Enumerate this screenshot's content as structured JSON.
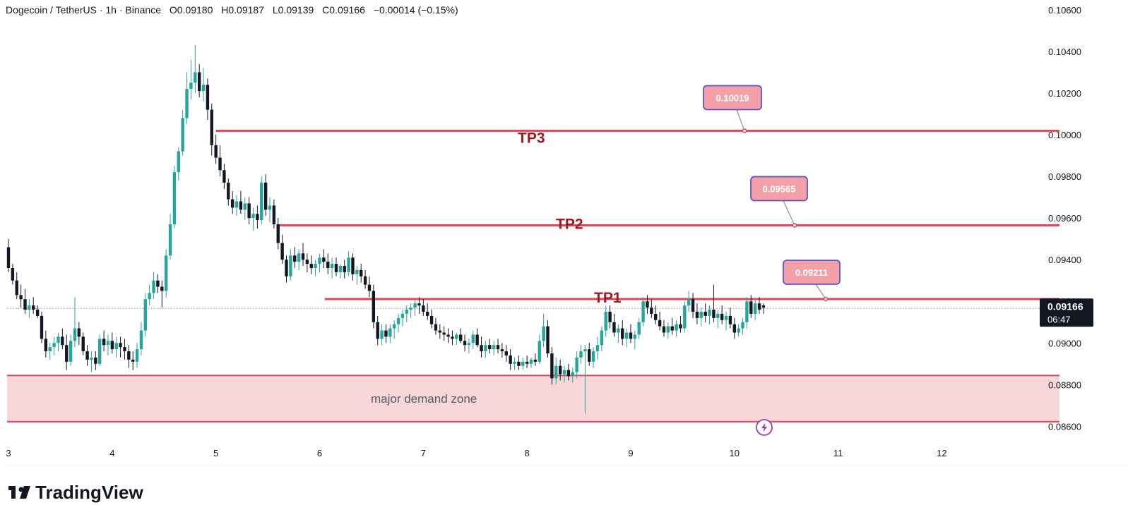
{
  "header": {
    "title": "Dogecoin / TetherUS · 1h · Binance",
    "open": "O0.09180",
    "high": "H0.09187",
    "low": "L0.09139",
    "close": "C0.09166",
    "change": "−0.00014 (−0.15%)"
  },
  "brand": {
    "name": "TradingView",
    "icon": "tradingview-logo-icon"
  },
  "colors": {
    "up": "#26a69a",
    "down": "#131722",
    "level": "#e0465a",
    "zone_fill": "#f7d7da",
    "callout_fill": "#f4a0a8",
    "callout_border": "#5b55c7",
    "badge": "#131722"
  },
  "current": {
    "price": "0.09166",
    "countdown": "06:47"
  },
  "lightning_icon": "lightning-icon",
  "chart_data": {
    "type": "candlestick",
    "title": "",
    "xlabel": "",
    "ylabel": "",
    "xlim": [
      3.0,
      12.93
    ],
    "ylim": [
      0.08547,
      0.1062
    ],
    "x_ticks": [
      "3",
      "4",
      "5",
      "6",
      "7",
      "8",
      "9",
      "10",
      "11",
      "12"
    ],
    "y_ticks": [
      "0.10600",
      "0.10400",
      "0.10200",
      "0.10000",
      "0.09800",
      "0.09600",
      "0.09400",
      "0.09200",
      "0.09000",
      "0.08800",
      "0.08600"
    ],
    "grid": false,
    "levels": [
      {
        "label": "TP3",
        "price": 0.10019,
        "callout": "0.10019",
        "x_start": 5.0
      },
      {
        "label": "TP2",
        "price": 0.09565,
        "callout": "0.09565",
        "x_start": 5.6
      },
      {
        "label": "TP1",
        "price": 0.09211,
        "callout": "0.09211",
        "x_start": 6.05
      }
    ],
    "demand_zone": {
      "label": "major demand zone",
      "high": 0.08844,
      "low": 0.08622
    },
    "last_price": 0.09166,
    "candles": [
      [
        3.0,
        0.0946,
        0.095,
        0.0934,
        0.0936
      ],
      [
        3.04,
        0.0936,
        0.0938,
        0.0928,
        0.093
      ],
      [
        3.08,
        0.093,
        0.0934,
        0.0921,
        0.0923
      ],
      [
        3.12,
        0.0923,
        0.0928,
        0.0917,
        0.0921
      ],
      [
        3.16,
        0.0921,
        0.0926,
        0.0914,
        0.0916
      ],
      [
        3.2,
        0.0916,
        0.0921,
        0.0912,
        0.0918
      ],
      [
        3.24,
        0.0918,
        0.0922,
        0.0914,
        0.0916
      ],
      [
        3.28,
        0.0916,
        0.0918,
        0.0912,
        0.0913
      ],
      [
        3.32,
        0.0913,
        0.0915,
        0.09,
        0.0902
      ],
      [
        3.36,
        0.0902,
        0.0906,
        0.0893,
        0.0896
      ],
      [
        3.4,
        0.0896,
        0.09,
        0.0892,
        0.0898
      ],
      [
        3.44,
        0.0898,
        0.0903,
        0.0894,
        0.09
      ],
      [
        3.48,
        0.09,
        0.0905,
        0.0896,
        0.0903
      ],
      [
        3.52,
        0.0903,
        0.0907,
        0.0897,
        0.0899
      ],
      [
        3.56,
        0.0899,
        0.0904,
        0.0887,
        0.0891
      ],
      [
        3.6,
        0.0891,
        0.0904,
        0.0889,
        0.0901
      ],
      [
        3.64,
        0.0901,
        0.0922,
        0.0898,
        0.0907
      ],
      [
        3.68,
        0.0907,
        0.091,
        0.0899,
        0.0903
      ],
      [
        3.72,
        0.0903,
        0.0905,
        0.0894,
        0.0896
      ],
      [
        3.76,
        0.0896,
        0.0899,
        0.0889,
        0.0892
      ],
      [
        3.8,
        0.0892,
        0.0896,
        0.0886,
        0.0893
      ],
      [
        3.84,
        0.0893,
        0.0896,
        0.0887,
        0.089
      ],
      [
        3.88,
        0.089,
        0.0904,
        0.0889,
        0.0902
      ],
      [
        3.92,
        0.0902,
        0.0906,
        0.0896,
        0.0899
      ],
      [
        3.96,
        0.0899,
        0.0904,
        0.0894,
        0.0901
      ],
      [
        4.0,
        0.0901,
        0.0905,
        0.0895,
        0.0897
      ],
      [
        4.04,
        0.0897,
        0.0903,
        0.0893,
        0.09
      ],
      [
        4.08,
        0.09,
        0.0903,
        0.0893,
        0.0898
      ],
      [
        4.12,
        0.0898,
        0.0902,
        0.0892,
        0.0896
      ],
      [
        4.16,
        0.0896,
        0.0899,
        0.0888,
        0.0892
      ],
      [
        4.2,
        0.0892,
        0.0896,
        0.0887,
        0.0891
      ],
      [
        4.24,
        0.0891,
        0.09,
        0.0888,
        0.0897
      ],
      [
        4.28,
        0.0897,
        0.091,
        0.0894,
        0.0906
      ],
      [
        4.32,
        0.0906,
        0.0924,
        0.0903,
        0.0921
      ],
      [
        4.36,
        0.0921,
        0.0928,
        0.0918,
        0.0924
      ],
      [
        4.4,
        0.0924,
        0.0934,
        0.0921,
        0.093
      ],
      [
        4.44,
        0.093,
        0.0933,
        0.0924,
        0.0927
      ],
      [
        4.48,
        0.0927,
        0.093,
        0.0917,
        0.0925
      ],
      [
        4.52,
        0.0925,
        0.0945,
        0.0922,
        0.0942
      ],
      [
        4.56,
        0.0942,
        0.0962,
        0.094,
        0.0957
      ],
      [
        4.6,
        0.0957,
        0.0985,
        0.0955,
        0.0982
      ],
      [
        4.64,
        0.0982,
        0.0994,
        0.0978,
        0.0992
      ],
      [
        4.68,
        0.0992,
        0.1012,
        0.099,
        0.1008
      ],
      [
        4.72,
        0.1008,
        0.103,
        0.1005,
        0.1022
      ],
      [
        4.76,
        0.1022,
        0.1036,
        0.1017,
        0.1025
      ],
      [
        4.8,
        0.1025,
        0.1043,
        0.102,
        0.103
      ],
      [
        4.84,
        0.103,
        0.1034,
        0.1018,
        0.1021
      ],
      [
        4.88,
        0.1021,
        0.1032,
        0.1016,
        0.1024
      ],
      [
        4.92,
        0.1024,
        0.1027,
        0.1007,
        0.1012
      ],
      [
        4.96,
        0.1012,
        0.1015,
        0.099,
        0.0995
      ],
      [
        5.0,
        0.0995,
        0.1,
        0.0986,
        0.0989
      ],
      [
        5.04,
        0.0989,
        0.0995,
        0.098,
        0.0983
      ],
      [
        5.08,
        0.0983,
        0.0986,
        0.0974,
        0.0977
      ],
      [
        5.12,
        0.0977,
        0.0979,
        0.0966,
        0.0969
      ],
      [
        5.16,
        0.0969,
        0.0973,
        0.0962,
        0.0965
      ],
      [
        5.2,
        0.0965,
        0.0971,
        0.0961,
        0.0968
      ],
      [
        5.24,
        0.0968,
        0.0973,
        0.0962,
        0.0964
      ],
      [
        5.28,
        0.0964,
        0.097,
        0.0959,
        0.0967
      ],
      [
        5.32,
        0.0967,
        0.097,
        0.0957,
        0.096
      ],
      [
        5.36,
        0.096,
        0.0965,
        0.0954,
        0.0962
      ],
      [
        5.4,
        0.0962,
        0.0966,
        0.0955,
        0.0959
      ],
      [
        5.44,
        0.0959,
        0.098,
        0.0957,
        0.0977
      ],
      [
        5.48,
        0.0977,
        0.0981,
        0.0961,
        0.0964
      ],
      [
        5.52,
        0.0964,
        0.097,
        0.0958,
        0.0966
      ],
      [
        5.56,
        0.0966,
        0.0969,
        0.0955,
        0.0957
      ],
      [
        5.6,
        0.0957,
        0.096,
        0.0945,
        0.0948
      ],
      [
        5.64,
        0.0948,
        0.0952,
        0.0938,
        0.094
      ],
      [
        5.68,
        0.094,
        0.0942,
        0.0929,
        0.0932
      ],
      [
        5.72,
        0.0932,
        0.0945,
        0.093,
        0.0942
      ],
      [
        5.76,
        0.0942,
        0.0946,
        0.0936,
        0.0939
      ],
      [
        5.8,
        0.0939,
        0.0945,
        0.0935,
        0.0943
      ],
      [
        5.84,
        0.0943,
        0.0948,
        0.0937,
        0.094
      ],
      [
        5.88,
        0.094,
        0.0943,
        0.0934,
        0.0938
      ],
      [
        5.92,
        0.0938,
        0.0942,
        0.0933,
        0.0936
      ],
      [
        5.96,
        0.0936,
        0.094,
        0.0932,
        0.0938
      ],
      [
        6.0,
        0.0938,
        0.0943,
        0.0934,
        0.0941
      ],
      [
        6.04,
        0.0941,
        0.0945,
        0.0936,
        0.0939
      ],
      [
        6.08,
        0.0939,
        0.0943,
        0.0933,
        0.0936
      ],
      [
        6.12,
        0.0936,
        0.0941,
        0.0931,
        0.0938
      ],
      [
        6.16,
        0.0938,
        0.0941,
        0.0932,
        0.0934
      ],
      [
        6.2,
        0.0934,
        0.0938,
        0.0931,
        0.0937
      ],
      [
        6.24,
        0.0937,
        0.094,
        0.0931,
        0.0934
      ],
      [
        6.28,
        0.0934,
        0.0944,
        0.0932,
        0.0941
      ],
      [
        6.32,
        0.0941,
        0.0943,
        0.093,
        0.0933
      ],
      [
        6.36,
        0.0933,
        0.0937,
        0.0928,
        0.0935
      ],
      [
        6.4,
        0.0935,
        0.0938,
        0.0929,
        0.0932
      ],
      [
        6.44,
        0.0932,
        0.0935,
        0.0926,
        0.0928
      ],
      [
        6.48,
        0.0928,
        0.0932,
        0.0922,
        0.0925
      ],
      [
        6.52,
        0.0925,
        0.0928,
        0.0907,
        0.091
      ],
      [
        6.56,
        0.091,
        0.0913,
        0.0899,
        0.0902
      ],
      [
        6.6,
        0.0902,
        0.0909,
        0.0899,
        0.0906
      ],
      [
        6.64,
        0.0906,
        0.0909,
        0.09,
        0.0903
      ],
      [
        6.68,
        0.0903,
        0.0909,
        0.09,
        0.0907
      ],
      [
        6.72,
        0.0907,
        0.0911,
        0.0902,
        0.0909
      ],
      [
        6.76,
        0.0909,
        0.0914,
        0.0905,
        0.0912
      ],
      [
        6.8,
        0.0912,
        0.0916,
        0.0908,
        0.0914
      ],
      [
        6.84,
        0.0914,
        0.0918,
        0.091,
        0.0916
      ],
      [
        6.88,
        0.0916,
        0.0919,
        0.0912,
        0.0917
      ],
      [
        6.92,
        0.0917,
        0.0921,
        0.0913,
        0.0919
      ],
      [
        6.96,
        0.0919,
        0.0922,
        0.0914,
        0.0918
      ],
      [
        7.0,
        0.0918,
        0.0921,
        0.0913,
        0.0915
      ],
      [
        7.04,
        0.0915,
        0.0919,
        0.0911,
        0.0913
      ],
      [
        7.08,
        0.0913,
        0.0916,
        0.0907,
        0.0909
      ],
      [
        7.12,
        0.0909,
        0.0912,
        0.0904,
        0.0906
      ],
      [
        7.16,
        0.0906,
        0.0909,
        0.0902,
        0.0905
      ],
      [
        7.2,
        0.0905,
        0.0908,
        0.0901,
        0.0904
      ],
      [
        7.24,
        0.0904,
        0.0907,
        0.09,
        0.0903
      ],
      [
        7.28,
        0.0903,
        0.0906,
        0.0899,
        0.0902
      ],
      [
        7.32,
        0.0902,
        0.0905,
        0.0899,
        0.0904
      ],
      [
        7.36,
        0.0904,
        0.0907,
        0.09,
        0.0901
      ],
      [
        7.4,
        0.0901,
        0.0904,
        0.0896,
        0.0899
      ],
      [
        7.44,
        0.0899,
        0.0902,
        0.0895,
        0.09
      ],
      [
        7.48,
        0.09,
        0.0906,
        0.0897,
        0.0904
      ],
      [
        7.52,
        0.0904,
        0.0907,
        0.0898,
        0.0899
      ],
      [
        7.56,
        0.0899,
        0.0903,
        0.0893,
        0.0896
      ],
      [
        7.6,
        0.0896,
        0.0901,
        0.0893,
        0.0899
      ],
      [
        7.64,
        0.0899,
        0.0902,
        0.0895,
        0.0897
      ],
      [
        7.68,
        0.0897,
        0.0901,
        0.0894,
        0.0899
      ],
      [
        7.72,
        0.0899,
        0.0902,
        0.0895,
        0.0897
      ],
      [
        7.76,
        0.0897,
        0.09,
        0.0893,
        0.0896
      ],
      [
        7.8,
        0.0896,
        0.0899,
        0.0891,
        0.0894
      ],
      [
        7.84,
        0.0894,
        0.0897,
        0.0887,
        0.089
      ],
      [
        7.88,
        0.089,
        0.0893,
        0.0887,
        0.0891
      ],
      [
        7.92,
        0.0891,
        0.0894,
        0.0887,
        0.0889
      ],
      [
        7.96,
        0.0889,
        0.0893,
        0.0887,
        0.0891
      ],
      [
        8.0,
        0.0891,
        0.0894,
        0.0888,
        0.089
      ],
      [
        8.04,
        0.089,
        0.0893,
        0.0888,
        0.0892
      ],
      [
        8.08,
        0.0892,
        0.0895,
        0.0889,
        0.0891
      ],
      [
        8.12,
        0.0891,
        0.0904,
        0.089,
        0.0901
      ],
      [
        8.16,
        0.0901,
        0.0914,
        0.0898,
        0.0908
      ],
      [
        8.2,
        0.0908,
        0.0911,
        0.0893,
        0.0895
      ],
      [
        8.24,
        0.0895,
        0.0898,
        0.088,
        0.0883
      ],
      [
        8.28,
        0.0883,
        0.0893,
        0.088,
        0.0889
      ],
      [
        8.32,
        0.0889,
        0.0892,
        0.0882,
        0.0885
      ],
      [
        8.36,
        0.0885,
        0.0889,
        0.0881,
        0.0887
      ],
      [
        8.4,
        0.0887,
        0.089,
        0.0882,
        0.0884
      ],
      [
        8.44,
        0.0884,
        0.0888,
        0.0881,
        0.0886
      ],
      [
        8.48,
        0.0886,
        0.0896,
        0.0883,
        0.0893
      ],
      [
        8.52,
        0.0893,
        0.0899,
        0.089,
        0.0896
      ],
      [
        8.56,
        0.0896,
        0.0899,
        0.0866,
        0.0897
      ],
      [
        8.6,
        0.0897,
        0.09,
        0.0889,
        0.0891
      ],
      [
        8.64,
        0.0891,
        0.0898,
        0.0888,
        0.0896
      ],
      [
        8.68,
        0.0896,
        0.0903,
        0.0892,
        0.0899
      ],
      [
        8.72,
        0.0899,
        0.0908,
        0.0896,
        0.0906
      ],
      [
        8.76,
        0.0906,
        0.0918,
        0.0903,
        0.0915
      ],
      [
        8.8,
        0.0915,
        0.0918,
        0.0907,
        0.091
      ],
      [
        8.84,
        0.091,
        0.0914,
        0.0903,
        0.0905
      ],
      [
        8.88,
        0.0905,
        0.0909,
        0.09,
        0.0907
      ],
      [
        8.92,
        0.0907,
        0.0911,
        0.0899,
        0.0902
      ],
      [
        8.96,
        0.0902,
        0.0907,
        0.0898,
        0.0905
      ],
      [
        9.0,
        0.0905,
        0.0909,
        0.09,
        0.0902
      ],
      [
        9.04,
        0.0902,
        0.0906,
        0.0897,
        0.0904
      ],
      [
        9.08,
        0.0904,
        0.0912,
        0.0902,
        0.091
      ],
      [
        9.12,
        0.091,
        0.0922,
        0.0908,
        0.092
      ],
      [
        9.16,
        0.092,
        0.0923,
        0.0914,
        0.0917
      ],
      [
        9.2,
        0.0917,
        0.0921,
        0.0912,
        0.0914
      ],
      [
        9.24,
        0.0914,
        0.0918,
        0.0909,
        0.0911
      ],
      [
        9.28,
        0.0911,
        0.0915,
        0.0906,
        0.0908
      ],
      [
        9.32,
        0.0908,
        0.0911,
        0.0903,
        0.0905
      ],
      [
        9.36,
        0.0905,
        0.091,
        0.0902,
        0.0908
      ],
      [
        9.4,
        0.0908,
        0.0912,
        0.0904,
        0.0906
      ],
      [
        9.44,
        0.0906,
        0.0911,
        0.0903,
        0.0909
      ],
      [
        9.48,
        0.0909,
        0.0913,
        0.0905,
        0.0907
      ],
      [
        9.52,
        0.0907,
        0.092,
        0.0905,
        0.0918
      ],
      [
        9.56,
        0.0918,
        0.0925,
        0.0915,
        0.0921
      ],
      [
        9.6,
        0.0921,
        0.0924,
        0.0912,
        0.0915
      ],
      [
        9.64,
        0.0915,
        0.0919,
        0.0909,
        0.0912
      ],
      [
        9.68,
        0.0912,
        0.0917,
        0.0908,
        0.0915
      ],
      [
        9.72,
        0.0915,
        0.0919,
        0.091,
        0.0913
      ],
      [
        9.76,
        0.0913,
        0.0918,
        0.0909,
        0.0916
      ],
      [
        9.8,
        0.0916,
        0.0928,
        0.091,
        0.0912
      ],
      [
        9.84,
        0.0912,
        0.0916,
        0.0907,
        0.0914
      ],
      [
        9.88,
        0.0914,
        0.0918,
        0.0909,
        0.0911
      ],
      [
        9.92,
        0.0911,
        0.0915,
        0.0906,
        0.0913
      ],
      [
        9.96,
        0.0913,
        0.0917,
        0.0907,
        0.0909
      ],
      [
        10.0,
        0.0909,
        0.0912,
        0.0902,
        0.0905
      ],
      [
        10.04,
        0.0905,
        0.0909,
        0.0903,
        0.0907
      ],
      [
        10.08,
        0.0907,
        0.0912,
        0.0904,
        0.091
      ],
      [
        10.12,
        0.091,
        0.0922,
        0.0907,
        0.092
      ],
      [
        10.16,
        0.092,
        0.0923,
        0.0912,
        0.0914
      ],
      [
        10.2,
        0.0914,
        0.0921,
        0.0911,
        0.0919
      ],
      [
        10.24,
        0.0919,
        0.0922,
        0.0914,
        0.0916
      ],
      [
        10.28,
        0.0918,
        0.0919,
        0.0914,
        0.0917
      ]
    ]
  }
}
